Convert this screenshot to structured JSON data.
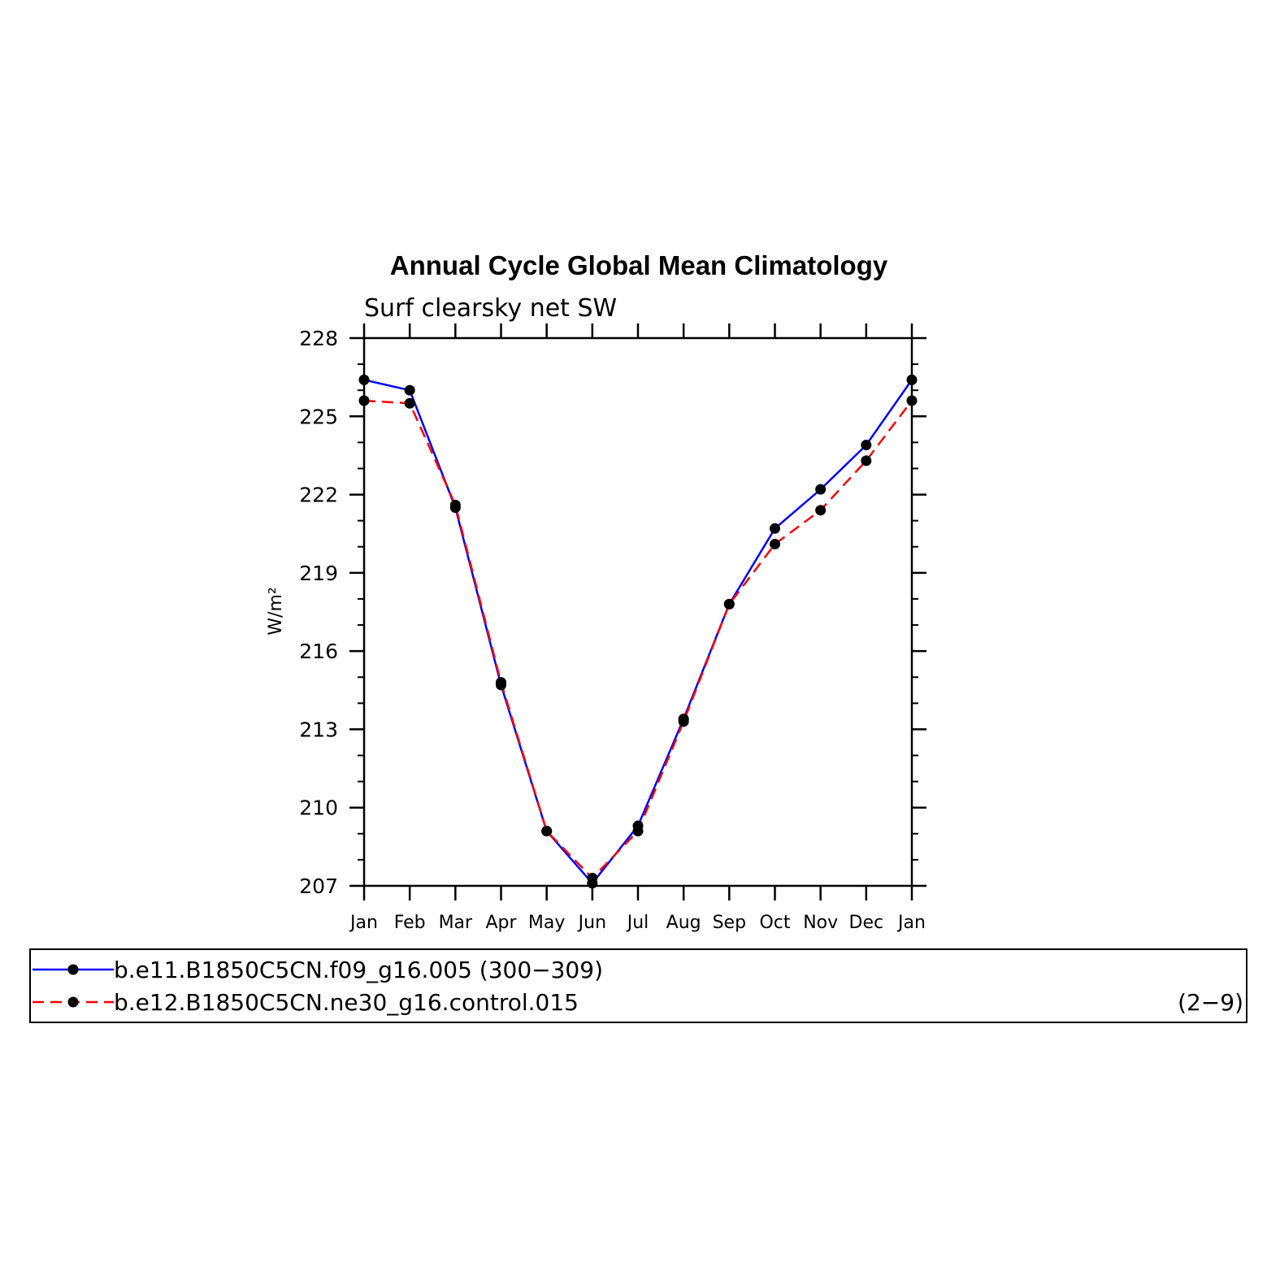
{
  "chart_data": {
    "type": "line",
    "title": "Annual Cycle Global Mean Climatology",
    "subtitle": "Surf clearsky net SW",
    "xlabel": "",
    "ylabel": "W/m²",
    "categories": [
      "Jan",
      "Feb",
      "Mar",
      "Apr",
      "May",
      "Jun",
      "Jul",
      "Aug",
      "Sep",
      "Oct",
      "Nov",
      "Dec",
      "Jan"
    ],
    "ylim": [
      207,
      228
    ],
    "yticks": [
      "207",
      "210",
      "213",
      "216",
      "219",
      "222",
      "225",
      "228"
    ],
    "grid": false,
    "legend_position": "bottom",
    "series": [
      {
        "name": "b.e11.B1850C5CN.f09_g16.005 (300−309)",
        "color": "#0000ff",
        "dash": "solid",
        "values": [
          226.4,
          226.0,
          221.5,
          214.7,
          209.1,
          207.1,
          209.3,
          213.4,
          217.8,
          220.7,
          222.2,
          223.9,
          226.4
        ]
      },
      {
        "name": "b.e12.B1850C5CN.ne30_g16.control.015",
        "name_suffix": "(2−9)",
        "color": "#ff0000",
        "dash": "dashed",
        "values": [
          225.6,
          225.5,
          221.6,
          214.8,
          209.1,
          207.3,
          209.1,
          213.3,
          217.8,
          220.1,
          221.4,
          223.3,
          225.6
        ]
      }
    ]
  }
}
